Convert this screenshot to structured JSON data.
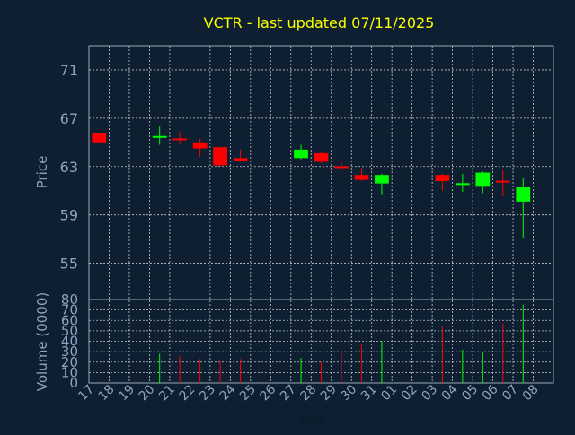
{
  "chart_data": {
    "type": "candlestick",
    "title": "VCTR - last updated 07/11/2025",
    "xlabel": "Day",
    "price_panel": {
      "ylabel": "Price",
      "ylim": [
        52,
        73
      ],
      "yticks": [
        55,
        59,
        63,
        67,
        71
      ]
    },
    "volume_panel": {
      "ylabel": "Volume (0000)",
      "ylim": [
        0,
        80
      ],
      "yticks": [
        0,
        10,
        20,
        30,
        40,
        50,
        60,
        70,
        80
      ]
    },
    "x_labels": [
      "17",
      "18",
      "19",
      "20",
      "21",
      "22",
      "23",
      "24",
      "25",
      "26",
      "27",
      "28",
      "29",
      "30",
      "31",
      "01",
      "02",
      "03",
      "04",
      "05",
      "06",
      "07",
      "08"
    ],
    "colors": {
      "up": "#00ff00",
      "down": "#ff0000",
      "title": "#ffff00",
      "axis": "#8fa3c0",
      "background": "#0d1f30"
    },
    "candles": [
      {
        "day": "17",
        "open": 65.8,
        "close": 65.0,
        "high": 65.8,
        "low": 65.0,
        "volume": 0
      },
      {
        "day": "20",
        "open": 65.4,
        "close": 65.5,
        "high": 66.3,
        "low": 64.8,
        "volume": 28
      },
      {
        "day": "21",
        "open": 65.3,
        "close": 65.2,
        "high": 65.9,
        "low": 64.9,
        "volume": 26
      },
      {
        "day": "22",
        "open": 65.0,
        "close": 64.5,
        "high": 65.3,
        "low": 63.8,
        "volume": 23
      },
      {
        "day": "23",
        "open": 64.6,
        "close": 63.1,
        "high": 64.6,
        "low": 63.0,
        "volume": 22
      },
      {
        "day": "24",
        "open": 63.7,
        "close": 63.5,
        "high": 64.4,
        "low": 63.4,
        "volume": 23
      },
      {
        "day": "27",
        "open": 63.7,
        "close": 64.4,
        "high": 64.8,
        "low": 63.6,
        "volume": 24
      },
      {
        "day": "28",
        "open": 64.1,
        "close": 63.4,
        "high": 64.2,
        "low": 63.3,
        "volume": 20
      },
      {
        "day": "29",
        "open": 63.0,
        "close": 62.9,
        "high": 63.5,
        "low": 62.7,
        "volume": 31
      },
      {
        "day": "30",
        "open": 62.3,
        "close": 61.9,
        "high": 62.9,
        "low": 61.8,
        "volume": 37
      },
      {
        "day": "31",
        "open": 61.6,
        "close": 62.3,
        "high": 62.4,
        "low": 60.7,
        "volume": 40
      },
      {
        "day": "03",
        "open": 62.3,
        "close": 61.8,
        "high": 62.4,
        "low": 61.0,
        "volume": 55
      },
      {
        "day": "04",
        "open": 61.5,
        "close": 61.6,
        "high": 62.4,
        "low": 60.9,
        "volume": 32
      },
      {
        "day": "05",
        "open": 61.4,
        "close": 62.5,
        "high": 62.6,
        "low": 60.8,
        "volume": 30
      },
      {
        "day": "06",
        "open": 61.8,
        "close": 61.7,
        "high": 62.7,
        "low": 60.6,
        "volume": 57
      },
      {
        "day": "07",
        "open": 60.1,
        "close": 61.3,
        "high": 62.1,
        "low": 57.1,
        "volume": 75
      }
    ]
  }
}
